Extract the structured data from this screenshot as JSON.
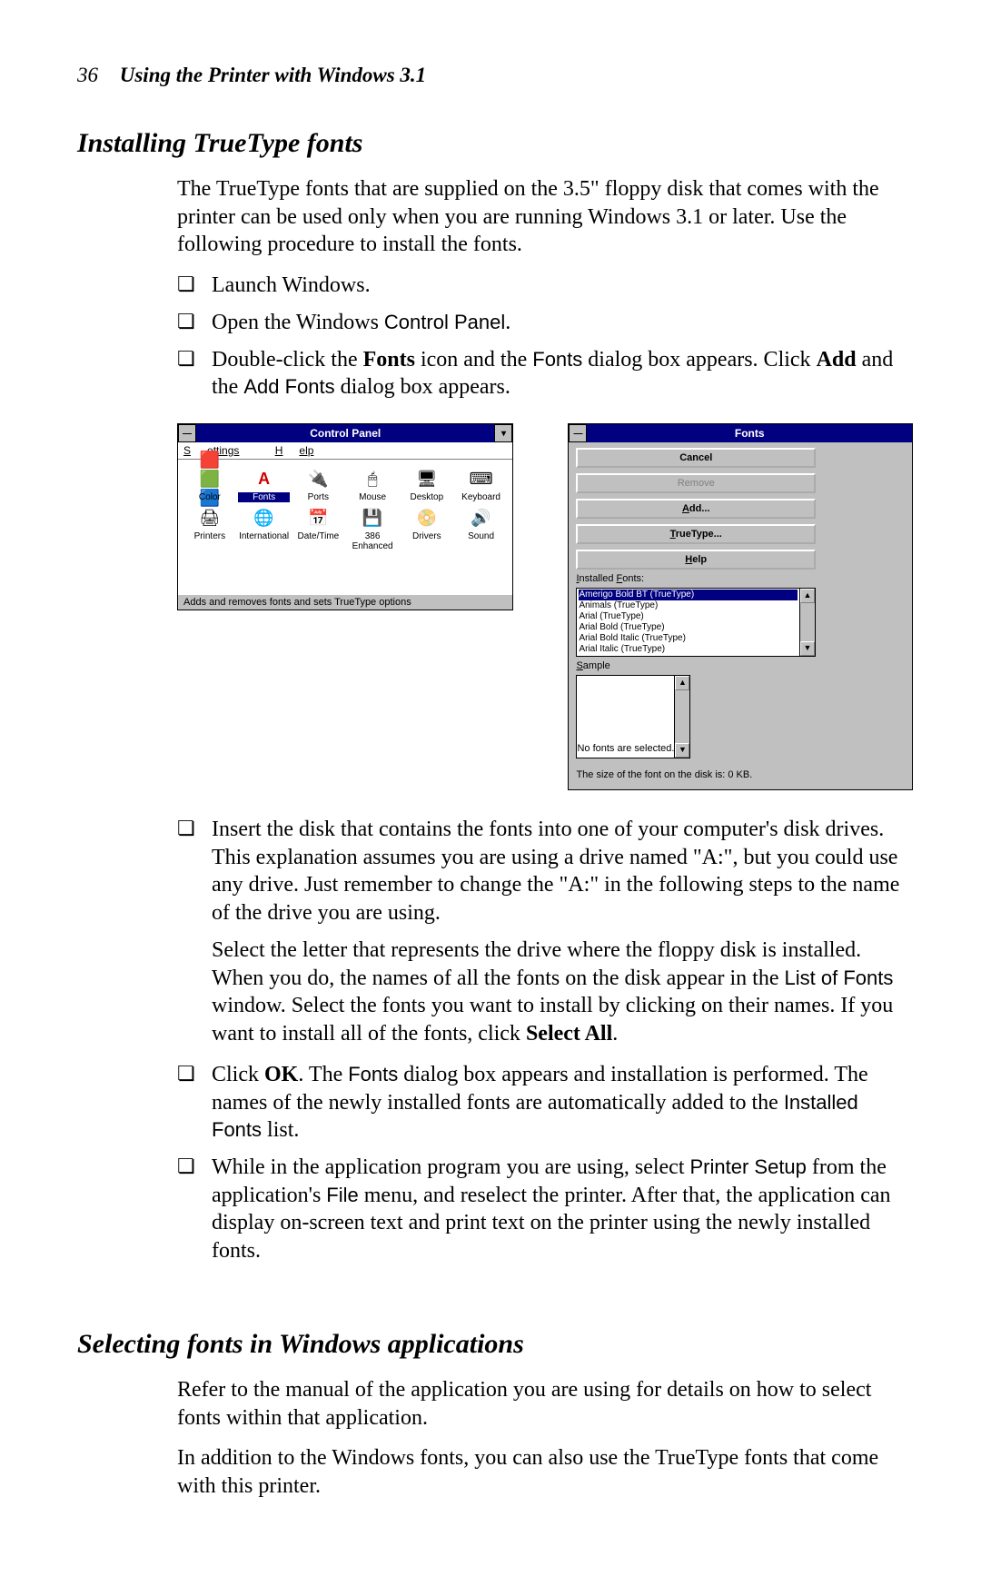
{
  "page": {
    "number": "36",
    "header_title": "Using the Printer with Windows 3.1"
  },
  "section1": {
    "title": "Installing TrueType fonts",
    "intro": "The TrueType fonts that are supplied on the 3.5\" floppy disk that comes with the printer can be used only when you are running Windows 3.1 or later. Use the following procedure to install the fonts.",
    "step1": "Launch Windows.",
    "step2_a": "Open the Windows ",
    "step2_b": "Control Panel",
    "step2_c": ".",
    "step3_a": "Double-click the ",
    "step3_b": "Fonts",
    "step3_c": " icon and the ",
    "step3_d": "Fonts",
    "step3_e": " dialog box appears. Click ",
    "step3_f": "Add",
    "step3_g": " and the ",
    "step3_h": "Add Fonts",
    "step3_i": " dialog box appears.",
    "step4": "Insert the disk that contains the fonts into one of your computer's disk drives. This explanation assumes you are using a drive named \"A:\", but you could use any drive. Just remember to change the \"A:\" in the following steps to the name of the drive you are using.",
    "step4b_a": "Select the letter that represents the drive where the floppy disk is installed. When you do, the names of all the fonts on the disk appear in the ",
    "step4b_b": "List of Fonts",
    "step4b_c": " window. Select the fonts you want to install by clicking on their names. If you want to install all of the fonts, click ",
    "step4b_d": "Select All",
    "step4b_e": ".",
    "step5_a": "Click ",
    "step5_b": "OK",
    "step5_c": ". The ",
    "step5_d": "Fonts",
    "step5_e": " dialog box appears and installation is performed. The names of the newly installed fonts are automatically added to the ",
    "step5_f": "Installed Fonts",
    "step5_g": " list.",
    "step6_a": "While in the application program you are using, select ",
    "step6_b": "Printer Setup",
    "step6_c": " from the application's ",
    "step6_d": "File",
    "step6_e": " menu, and reselect the printer. After that, the application can display on-screen text and print text on the printer using the newly installed fonts."
  },
  "cp_window": {
    "title": "Control Panel",
    "menu_settings": "Settings",
    "menu_help": "Help",
    "items": {
      "color": "Color",
      "fonts": "Fonts",
      "ports": "Ports",
      "mouse": "Mouse",
      "desktop": "Desktop",
      "keyboard": "Keyboard",
      "printers": "Printers",
      "international": "International",
      "datetime": "Date/Time",
      "enhanced": "386 Enhanced",
      "drivers": "Drivers",
      "sound": "Sound"
    },
    "status": "Adds and removes fonts and sets TrueType options"
  },
  "fonts_dialog": {
    "title": "Fonts",
    "installed_label": "Installed Fonts:",
    "list": {
      "f0": "Amerigo Bold BT (TrueType)",
      "f1": "Animals (TrueType)",
      "f2": "Arial (TrueType)",
      "f3": "Arial Bold (TrueType)",
      "f4": "Arial Bold Italic (TrueType)",
      "f5": "Arial Italic (TrueType)"
    },
    "sample_label": "Sample",
    "sample_text": "No fonts are selected.",
    "size_text": "The size of the font on the disk is:  0 KB.",
    "buttons": {
      "cancel": "Cancel",
      "remove": "Remove",
      "add": "Add...",
      "truetype": "TrueType...",
      "help": "Help"
    }
  },
  "section2": {
    "title": "Selecting fonts in Windows applications",
    "p1": "Refer to the manual of the application you are using for details on how to select fonts within that application.",
    "p2": "In addition to the Windows fonts, you can also use the TrueType fonts that come with this printer."
  }
}
